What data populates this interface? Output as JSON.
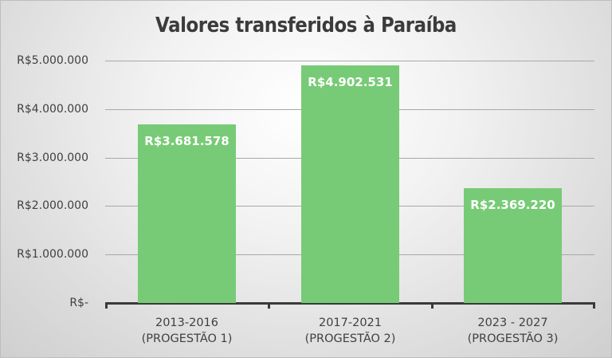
{
  "chart_data": {
    "type": "bar",
    "title": "Valores transferidos à Paraíba",
    "categories": [
      "2013-2016 (PROGESTÃO 1)",
      "2017-2021 (PROGESTÃO 2)",
      "2023 - 2027 (PROGESTÃO 3)"
    ],
    "category_lines": [
      [
        "2013-2016",
        "(PROGESTÃO 1)"
      ],
      [
        "2017-2021",
        "(PROGESTÃO 2)"
      ],
      [
        "2023 - 2027",
        "(PROGESTÃO 3)"
      ]
    ],
    "values": [
      3681578,
      4902531,
      2369220
    ],
    "data_labels": [
      "R$3.681.578",
      "R$4.902.531",
      "R$2.369.220"
    ],
    "xlabel": "",
    "ylabel": "",
    "ylim": [
      0,
      5000000
    ],
    "yticks": [
      0,
      1000000,
      2000000,
      3000000,
      4000000,
      5000000
    ],
    "ytick_labels": [
      "R$-",
      "R$1.000.000",
      "R$2.000.000",
      "R$3.000.000",
      "R$4.000.000",
      "R$5.000.000"
    ],
    "grid": true,
    "legend": null,
    "bar_color": "#77cb76"
  }
}
